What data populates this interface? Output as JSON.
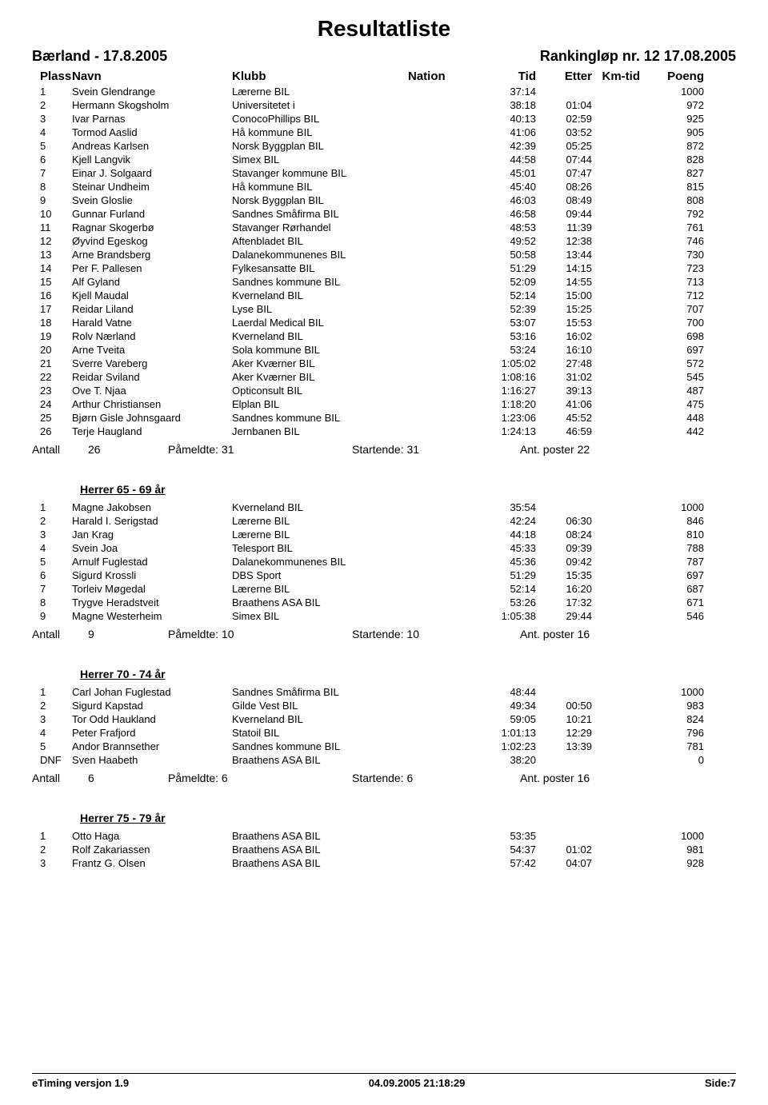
{
  "title": "Resultatliste",
  "event_left": "Bærland - 17.8.2005",
  "event_right": "Rankingløp nr. 12 17.08.2005",
  "columns": {
    "plass": "Plass",
    "navn": "Navn",
    "klubb": "Klubb",
    "nation": "Nation",
    "tid": "Tid",
    "etter": "Etter",
    "kmtid": "Km-tid",
    "poeng": "Poeng"
  },
  "summary_labels": {
    "antall": "Antall",
    "pameldte": "Påmeldte:",
    "startende": "Startende:",
    "poster": "Ant. poster"
  },
  "groups": [
    {
      "title": "",
      "rows": [
        {
          "plass": "1",
          "navn": "Svein Glendrange",
          "klubb": "Lærerne BIL",
          "tid": "37:14",
          "etter": "",
          "poeng": "1000"
        },
        {
          "plass": "2",
          "navn": "Hermann Skogsholm",
          "klubb": "Universitetet i",
          "tid": "38:18",
          "etter": "01:04",
          "poeng": "972"
        },
        {
          "plass": "3",
          "navn": "Ivar Parnas",
          "klubb": "ConocoPhillips BIL",
          "tid": "40:13",
          "etter": "02:59",
          "poeng": "925"
        },
        {
          "plass": "4",
          "navn": "Tormod Aaslid",
          "klubb": "Hå kommune BIL",
          "tid": "41:06",
          "etter": "03:52",
          "poeng": "905"
        },
        {
          "plass": "5",
          "navn": "Andreas Karlsen",
          "klubb": "Norsk Byggplan BIL",
          "tid": "42:39",
          "etter": "05:25",
          "poeng": "872"
        },
        {
          "plass": "6",
          "navn": "Kjell Langvik",
          "klubb": "Simex BIL",
          "tid": "44:58",
          "etter": "07:44",
          "poeng": "828"
        },
        {
          "plass": "7",
          "navn": "Einar J. Solgaard",
          "klubb": "Stavanger kommune BIL",
          "tid": "45:01",
          "etter": "07:47",
          "poeng": "827"
        },
        {
          "plass": "8",
          "navn": "Steinar Undheim",
          "klubb": "Hå kommune BIL",
          "tid": "45:40",
          "etter": "08:26",
          "poeng": "815"
        },
        {
          "plass": "9",
          "navn": "Svein Gloslie",
          "klubb": "Norsk Byggplan BIL",
          "tid": "46:03",
          "etter": "08:49",
          "poeng": "808"
        },
        {
          "plass": "10",
          "navn": "Gunnar Furland",
          "klubb": "Sandnes Småfirma BIL",
          "tid": "46:58",
          "etter": "09:44",
          "poeng": "792"
        },
        {
          "plass": "11",
          "navn": "Ragnar Skogerbø",
          "klubb": "Stavanger Rørhandel",
          "tid": "48:53",
          "etter": "11:39",
          "poeng": "761"
        },
        {
          "plass": "12",
          "navn": "Øyvind Egeskog",
          "klubb": "Aftenbladet BIL",
          "tid": "49:52",
          "etter": "12:38",
          "poeng": "746"
        },
        {
          "plass": "13",
          "navn": "Arne Brandsberg",
          "klubb": "Dalanekommunenes BIL",
          "tid": "50:58",
          "etter": "13:44",
          "poeng": "730"
        },
        {
          "plass": "14",
          "navn": "Per F. Pallesen",
          "klubb": "Fylkesansatte BIL",
          "tid": "51:29",
          "etter": "14:15",
          "poeng": "723"
        },
        {
          "plass": "15",
          "navn": "Alf Gyland",
          "klubb": "Sandnes kommune BIL",
          "tid": "52:09",
          "etter": "14:55",
          "poeng": "713"
        },
        {
          "plass": "16",
          "navn": "Kjell Maudal",
          "klubb": "Kverneland BIL",
          "tid": "52:14",
          "etter": "15:00",
          "poeng": "712"
        },
        {
          "plass": "17",
          "navn": "Reidar Liland",
          "klubb": "Lyse BIL",
          "tid": "52:39",
          "etter": "15:25",
          "poeng": "707"
        },
        {
          "plass": "18",
          "navn": "Harald Vatne",
          "klubb": "Laerdal Medical BIL",
          "tid": "53:07",
          "etter": "15:53",
          "poeng": "700"
        },
        {
          "plass": "19",
          "navn": "Rolv Nærland",
          "klubb": "Kverneland BIL",
          "tid": "53:16",
          "etter": "16:02",
          "poeng": "698"
        },
        {
          "plass": "20",
          "navn": "Arne Tveita",
          "klubb": "Sola kommune BIL",
          "tid": "53:24",
          "etter": "16:10",
          "poeng": "697"
        },
        {
          "plass": "21",
          "navn": "Sverre Vareberg",
          "klubb": "Aker Kværner BIL",
          "tid": "1:05:02",
          "etter": "27:48",
          "poeng": "572"
        },
        {
          "plass": "22",
          "navn": "Reidar Sviland",
          "klubb": "Aker Kværner BIL",
          "tid": "1:08:16",
          "etter": "31:02",
          "poeng": "545"
        },
        {
          "plass": "23",
          "navn": "Ove T. Njaa",
          "klubb": "Opticonsult BIL",
          "tid": "1:16:27",
          "etter": "39:13",
          "poeng": "487"
        },
        {
          "plass": "24",
          "navn": "Arthur Christiansen",
          "klubb": "Elplan BIL",
          "tid": "1:18:20",
          "etter": "41:06",
          "poeng": "475"
        },
        {
          "plass": "25",
          "navn": "Bjørn Gisle Johnsgaard",
          "klubb": "Sandnes kommune BIL",
          "tid": "1:23:06",
          "etter": "45:52",
          "poeng": "448"
        },
        {
          "plass": "26",
          "navn": "Terje Haugland",
          "klubb": "Jernbanen BIL",
          "tid": "1:24:13",
          "etter": "46:59",
          "poeng": "442"
        }
      ],
      "summary": {
        "antall": "26",
        "pameldte": "31",
        "startende": "31",
        "poster": "22"
      }
    },
    {
      "title": "Herrer 65 - 69 år",
      "rows": [
        {
          "plass": "1",
          "navn": "Magne Jakobsen",
          "klubb": "Kverneland BIL",
          "tid": "35:54",
          "etter": "",
          "poeng": "1000"
        },
        {
          "plass": "2",
          "navn": "Harald I. Serigstad",
          "klubb": "Lærerne BIL",
          "tid": "42:24",
          "etter": "06:30",
          "poeng": "846"
        },
        {
          "plass": "3",
          "navn": "Jan Krag",
          "klubb": "Lærerne BIL",
          "tid": "44:18",
          "etter": "08:24",
          "poeng": "810"
        },
        {
          "plass": "4",
          "navn": "Svein Joa",
          "klubb": "Telesport BIL",
          "tid": "45:33",
          "etter": "09:39",
          "poeng": "788"
        },
        {
          "plass": "5",
          "navn": "Arnulf Fuglestad",
          "klubb": "Dalanekommunenes BIL",
          "tid": "45:36",
          "etter": "09:42",
          "poeng": "787"
        },
        {
          "plass": "6",
          "navn": "Sigurd Krossli",
          "klubb": "DBS Sport",
          "tid": "51:29",
          "etter": "15:35",
          "poeng": "697"
        },
        {
          "plass": "7",
          "navn": "Torleiv Møgedal",
          "klubb": "Lærerne BIL",
          "tid": "52:14",
          "etter": "16:20",
          "poeng": "687"
        },
        {
          "plass": "8",
          "navn": "Trygve Heradstveit",
          "klubb": "Braathens ASA BIL",
          "tid": "53:26",
          "etter": "17:32",
          "poeng": "671"
        },
        {
          "plass": "9",
          "navn": "Magne Westerheim",
          "klubb": "Simex BIL",
          "tid": "1:05:38",
          "etter": "29:44",
          "poeng": "546"
        }
      ],
      "summary": {
        "antall": "9",
        "pameldte": "10",
        "startende": "10",
        "poster": "16"
      }
    },
    {
      "title": "Herrer 70 - 74 år",
      "rows": [
        {
          "plass": "1",
          "navn": "Carl Johan Fuglestad",
          "klubb": "Sandnes Småfirma BIL",
          "tid": "48:44",
          "etter": "",
          "poeng": "1000"
        },
        {
          "plass": "2",
          "navn": "Sigurd Kapstad",
          "klubb": "Gilde Vest BIL",
          "tid": "49:34",
          "etter": "00:50",
          "poeng": "983"
        },
        {
          "plass": "3",
          "navn": "Tor Odd Haukland",
          "klubb": "Kverneland BIL",
          "tid": "59:05",
          "etter": "10:21",
          "poeng": "824"
        },
        {
          "plass": "4",
          "navn": "Peter Frafjord",
          "klubb": "Statoil BIL",
          "tid": "1:01:13",
          "etter": "12:29",
          "poeng": "796"
        },
        {
          "plass": "5",
          "navn": "Andor Brannsether",
          "klubb": "Sandnes kommune BIL",
          "tid": "1:02:23",
          "etter": "13:39",
          "poeng": "781"
        },
        {
          "plass": "DNF",
          "navn": "Sven Haabeth",
          "klubb": "Braathens ASA BIL",
          "tid": "38:20",
          "etter": "",
          "poeng": "0"
        }
      ],
      "summary": {
        "antall": "6",
        "pameldte": "6",
        "startende": "6",
        "poster": "16"
      }
    },
    {
      "title": "Herrer 75 - 79 år",
      "rows": [
        {
          "plass": "1",
          "navn": "Otto Haga",
          "klubb": "Braathens ASA BIL",
          "tid": "53:35",
          "etter": "",
          "poeng": "1000"
        },
        {
          "plass": "2",
          "navn": "Rolf Zakariassen",
          "klubb": "Braathens ASA BIL",
          "tid": "54:37",
          "etter": "01:02",
          "poeng": "981"
        },
        {
          "plass": "3",
          "navn": "Frantz G. Olsen",
          "klubb": "Braathens ASA BIL",
          "tid": "57:42",
          "etter": "04:07",
          "poeng": "928"
        }
      ],
      "summary": null
    }
  ],
  "footer": {
    "left": "eTiming versjon 1.9",
    "center": "04.09.2005 21:18:29",
    "right": "Side:7"
  }
}
